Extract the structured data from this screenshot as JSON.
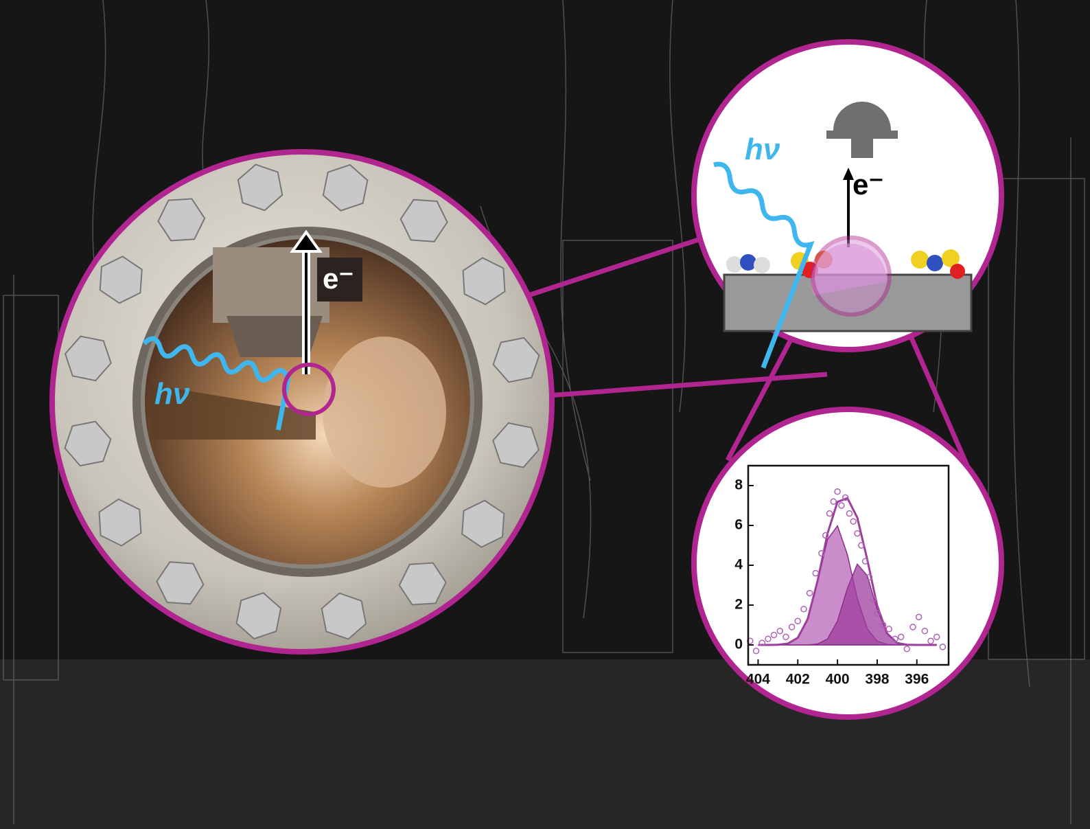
{
  "labels": {
    "photon_left": "hν",
    "electron_left": "e⁻",
    "photon_right": "hν",
    "electron_right": "e⁻"
  },
  "chart_data": {
    "type": "line",
    "x": [
      404,
      403.5,
      403,
      402.5,
      402,
      401.5,
      401,
      400.5,
      400,
      399.5,
      399,
      398.5,
      398,
      397.5,
      397,
      396.5,
      396,
      395.5,
      395
    ],
    "series": [
      {
        "color": "#9b3f9b",
        "values": [
          0,
          0,
          0.01,
          0.07,
          0.36,
          1.3,
          3.23,
          5.59,
          7.18,
          7.37,
          6.39,
          4.29,
          1.98,
          0.58,
          0.1,
          0.01,
          0,
          0,
          0
        ]
      },
      {
        "color": "#b866b8",
        "values": [
          0,
          0,
          0.01,
          0.07,
          0.36,
          1.3,
          3.18,
          5.29,
          5.98,
          4.53,
          2.33,
          0.81,
          0.19,
          0.03,
          0,
          0,
          0,
          0,
          0
        ]
      },
      {
        "color": "#9e3e9e",
        "values": [
          0,
          0,
          0,
          0,
          0,
          0,
          0.05,
          0.3,
          1.2,
          2.84,
          4.06,
          3.48,
          1.79,
          0.55,
          0.1,
          0.01,
          0,
          0,
          0
        ]
      }
    ],
    "points": {
      "color": "#b060b8",
      "x": [
        404.4,
        404.1,
        403.8,
        403.5,
        403.2,
        402.9,
        402.6,
        402.3,
        402.0,
        401.7,
        401.4,
        401.1,
        400.8,
        400.6,
        400.4,
        400.2,
        400.0,
        399.8,
        399.6,
        399.4,
        399.2,
        399.0,
        398.8,
        398.6,
        398.4,
        398.2,
        398.0,
        397.7,
        397.4,
        397.1,
        396.8,
        396.5,
        396.2,
        395.9,
        395.6,
        395.3,
        395.0,
        394.7
      ],
      "values": [
        0.2,
        -0.3,
        0.1,
        0.3,
        0.5,
        0.7,
        0.4,
        0.9,
        1.2,
        1.8,
        2.6,
        3.6,
        4.6,
        5.5,
        6.6,
        7.2,
        7.7,
        7.0,
        7.4,
        6.6,
        6.2,
        5.6,
        5.0,
        4.2,
        3.4,
        2.3,
        1.6,
        1.0,
        0.8,
        0.3,
        0.4,
        -0.2,
        0.9,
        1.4,
        0.7,
        0.2,
        0.4,
        -0.1
      ]
    },
    "xlim": [
      404.5,
      394.4
    ],
    "ylim": [
      -1,
      9
    ],
    "xticks": [
      404,
      402,
      400,
      398,
      396
    ],
    "yticks": [
      0,
      2,
      4,
      6,
      8
    ]
  }
}
